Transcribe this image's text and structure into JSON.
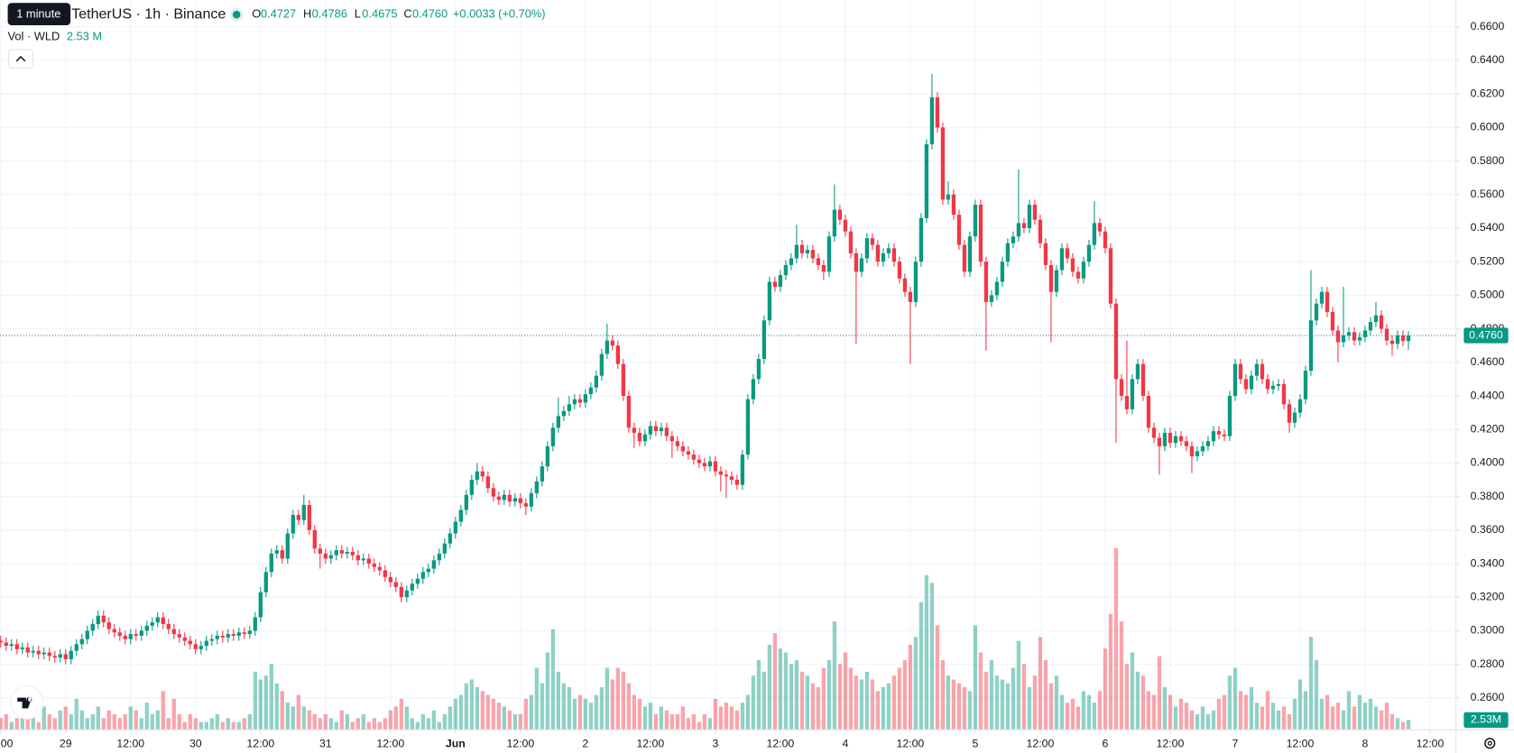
{
  "chart_data": {
    "type": "candlestick",
    "title": "TetherUS · 1h · Binance",
    "tooltip": "1 minute",
    "legend": {
      "o_label": "O",
      "o": "0.4727",
      "h_label": "H",
      "h": "0.4786",
      "l_label": "L",
      "l": "0.4675",
      "c_label": "C",
      "c": "0.4760",
      "change": "+0.0033 (+0.70%)"
    },
    "volume_title": "Vol · WLD",
    "volume_value": "2.53 M",
    "price_line_label": "0.4760",
    "volume_axis_label": "2.53M",
    "up_color": "#089981",
    "down_color": "#f23645",
    "grid": true,
    "xlim": [
      -0.125,
      268.8
    ],
    "ylim": [
      0.241,
      0.676
    ],
    "vlim": [
      0,
      60
    ],
    "xticks": [
      {
        "value": 0,
        "label": "00"
      },
      {
        "value": 12,
        "label": "29"
      },
      {
        "value": 24,
        "label": "12:00"
      },
      {
        "value": 36,
        "label": "30"
      },
      {
        "value": 48,
        "label": "12:00"
      },
      {
        "value": 60,
        "label": "31"
      },
      {
        "value": 72,
        "label": "12:00"
      },
      {
        "value": 84,
        "label": "Jun"
      },
      {
        "value": 96,
        "label": "12:00"
      },
      {
        "value": 108,
        "label": "2"
      },
      {
        "value": 120,
        "label": "12:00"
      },
      {
        "value": 132,
        "label": "3"
      },
      {
        "value": 144,
        "label": "12:00"
      },
      {
        "value": 156,
        "label": "4"
      },
      {
        "value": 168,
        "label": "12:00"
      },
      {
        "value": 180,
        "label": "5"
      },
      {
        "value": 192,
        "label": "12:00"
      },
      {
        "value": 204,
        "label": "6"
      },
      {
        "value": 216,
        "label": "12:00"
      },
      {
        "value": 228,
        "label": "7"
      },
      {
        "value": 240,
        "label": "12:00"
      },
      {
        "value": 252,
        "label": "8"
      },
      {
        "value": 264,
        "label": "12:00"
      }
    ],
    "yticks": [
      {
        "value": 0.26,
        "label": "0.2600"
      },
      {
        "value": 0.28,
        "label": "0.2800"
      },
      {
        "value": 0.3,
        "label": "0.3000"
      },
      {
        "value": 0.32,
        "label": "0.3200"
      },
      {
        "value": 0.34,
        "label": "0.3400"
      },
      {
        "value": 0.36,
        "label": "0.3600"
      },
      {
        "value": 0.38,
        "label": "0.3800"
      },
      {
        "value": 0.4,
        "label": "0.4000"
      },
      {
        "value": 0.42,
        "label": "0.4200"
      },
      {
        "value": 0.44,
        "label": "0.4400"
      },
      {
        "value": 0.46,
        "label": "0.4600"
      },
      {
        "value": 0.48,
        "label": "0.4800"
      },
      {
        "value": 0.5,
        "label": "0.5000"
      },
      {
        "value": 0.52,
        "label": "0.5200"
      },
      {
        "value": 0.54,
        "label": "0.5400"
      },
      {
        "value": 0.56,
        "label": "0.5600"
      },
      {
        "value": 0.58,
        "label": "0.5800"
      },
      {
        "value": 0.6,
        "label": "0.6000"
      },
      {
        "value": 0.62,
        "label": "0.6200"
      },
      {
        "value": 0.64,
        "label": "0.6400"
      },
      {
        "value": 0.66,
        "label": "0.6600"
      }
    ],
    "open": [
      0.294,
      0.293,
      0.291,
      0.292,
      0.289,
      0.29,
      0.287,
      0.288,
      0.286,
      0.287,
      0.285,
      0.284,
      0.286,
      0.283,
      0.288,
      0.292,
      0.295,
      0.3,
      0.304,
      0.309,
      0.305,
      0.301,
      0.299,
      0.297,
      0.295,
      0.298,
      0.297,
      0.3,
      0.303,
      0.305,
      0.308,
      0.304,
      0.301,
      0.298,
      0.296,
      0.294,
      0.292,
      0.289,
      0.291,
      0.294,
      0.295,
      0.297,
      0.296,
      0.298,
      0.297,
      0.299,
      0.298,
      0.3,
      0.308,
      0.323,
      0.335,
      0.346,
      0.348,
      0.343,
      0.358,
      0.369,
      0.366,
      0.375,
      0.36,
      0.349,
      0.346,
      0.343,
      0.345,
      0.348,
      0.346,
      0.347,
      0.345,
      0.342,
      0.343,
      0.34,
      0.338,
      0.336,
      0.332,
      0.329,
      0.326,
      0.32,
      0.324,
      0.328,
      0.331,
      0.335,
      0.337,
      0.342,
      0.346,
      0.352,
      0.358,
      0.365,
      0.372,
      0.381,
      0.39,
      0.395,
      0.392,
      0.385,
      0.38,
      0.378,
      0.381,
      0.377,
      0.379,
      0.376,
      0.374,
      0.382,
      0.389,
      0.398,
      0.41,
      0.421,
      0.428,
      0.431,
      0.435,
      0.438,
      0.436,
      0.441,
      0.445,
      0.452,
      0.465,
      0.473,
      0.47,
      0.459,
      0.44,
      0.421,
      0.418,
      0.413,
      0.417,
      0.422,
      0.419,
      0.421,
      0.416,
      0.413,
      0.41,
      0.407,
      0.405,
      0.402,
      0.4,
      0.398,
      0.401,
      0.395,
      0.393,
      0.392,
      0.39,
      0.387,
      0.405,
      0.438,
      0.45,
      0.462,
      0.485,
      0.508,
      0.505,
      0.512,
      0.518,
      0.522,
      0.53,
      0.525,
      0.527,
      0.522,
      0.518,
      0.514,
      0.535,
      0.551,
      0.545,
      0.538,
      0.525,
      0.514,
      0.522,
      0.534,
      0.53,
      0.52,
      0.525,
      0.528,
      0.52,
      0.51,
      0.502,
      0.496,
      0.52,
      0.546,
      0.59,
      0.618,
      0.6,
      0.557,
      0.56,
      0.548,
      0.53,
      0.514,
      0.535,
      0.554,
      0.52,
      0.496,
      0.5,
      0.508,
      0.52,
      0.531,
      0.535,
      0.543,
      0.54,
      0.554,
      0.545,
      0.531,
      0.518,
      0.502,
      0.515,
      0.528,
      0.522,
      0.514,
      0.51,
      0.52,
      0.53,
      0.543,
      0.538,
      0.528,
      0.495,
      0.45,
      0.44,
      0.432,
      0.45,
      0.459,
      0.44,
      0.421,
      0.415,
      0.41,
      0.418,
      0.412,
      0.416,
      0.413,
      0.41,
      0.404,
      0.407,
      0.41,
      0.413,
      0.419,
      0.417,
      0.416,
      0.44,
      0.459,
      0.45,
      0.444,
      0.452,
      0.459,
      0.45,
      0.444,
      0.446,
      0.447,
      0.435,
      0.424,
      0.43,
      0.438,
      0.455,
      0.485,
      0.495,
      0.502,
      0.49,
      0.479,
      0.472,
      0.476,
      0.478,
      0.473,
      0.475,
      0.479,
      0.484,
      0.488,
      0.48,
      0.473,
      0.471,
      0.476,
      0.4727
    ],
    "high": [
      0.297,
      0.296,
      0.295,
      0.295,
      0.293,
      0.293,
      0.291,
      0.291,
      0.29,
      0.29,
      0.288,
      0.289,
      0.289,
      0.291,
      0.295,
      0.298,
      0.303,
      0.307,
      0.312,
      0.312,
      0.308,
      0.304,
      0.302,
      0.3,
      0.301,
      0.301,
      0.303,
      0.306,
      0.308,
      0.311,
      0.311,
      0.307,
      0.304,
      0.301,
      0.299,
      0.297,
      0.295,
      0.294,
      0.297,
      0.298,
      0.3,
      0.3,
      0.301,
      0.301,
      0.302,
      0.302,
      0.303,
      0.311,
      0.326,
      0.338,
      0.349,
      0.351,
      0.351,
      0.361,
      0.372,
      0.372,
      0.381,
      0.378,
      0.363,
      0.352,
      0.349,
      0.348,
      0.351,
      0.351,
      0.35,
      0.35,
      0.348,
      0.346,
      0.346,
      0.343,
      0.341,
      0.339,
      0.335,
      0.332,
      0.329,
      0.327,
      0.331,
      0.334,
      0.338,
      0.34,
      0.345,
      0.349,
      0.355,
      0.361,
      0.368,
      0.375,
      0.384,
      0.393,
      0.4,
      0.398,
      0.395,
      0.388,
      0.383,
      0.384,
      0.384,
      0.382,
      0.382,
      0.379,
      0.385,
      0.392,
      0.401,
      0.413,
      0.424,
      0.439,
      0.434,
      0.44,
      0.441,
      0.441,
      0.444,
      0.448,
      0.455,
      0.468,
      0.483,
      0.476,
      0.473,
      0.462,
      0.443,
      0.424,
      0.421,
      0.42,
      0.425,
      0.425,
      0.424,
      0.424,
      0.419,
      0.416,
      0.413,
      0.41,
      0.408,
      0.405,
      0.403,
      0.404,
      0.404,
      0.398,
      0.396,
      0.395,
      0.393,
      0.408,
      0.441,
      0.453,
      0.465,
      0.488,
      0.511,
      0.511,
      0.515,
      0.521,
      0.525,
      0.542,
      0.533,
      0.53,
      0.53,
      0.525,
      0.521,
      0.538,
      0.566,
      0.554,
      0.548,
      0.541,
      0.528,
      0.525,
      0.537,
      0.537,
      0.533,
      0.528,
      0.531,
      0.531,
      0.523,
      0.513,
      0.505,
      0.523,
      0.549,
      0.593,
      0.632,
      0.621,
      0.603,
      0.568,
      0.563,
      0.551,
      0.533,
      0.538,
      0.557,
      0.557,
      0.523,
      0.503,
      0.511,
      0.523,
      0.534,
      0.538,
      0.575,
      0.546,
      0.557,
      0.557,
      0.548,
      0.534,
      0.521,
      0.518,
      0.531,
      0.531,
      0.525,
      0.517,
      0.523,
      0.533,
      0.556,
      0.546,
      0.541,
      0.531,
      0.498,
      0.453,
      0.473,
      0.453,
      0.462,
      0.462,
      0.443,
      0.424,
      0.418,
      0.421,
      0.421,
      0.419,
      0.419,
      0.416,
      0.413,
      0.41,
      0.413,
      0.416,
      0.422,
      0.422,
      0.42,
      0.443,
      0.462,
      0.462,
      0.453,
      0.455,
      0.462,
      0.462,
      0.453,
      0.449,
      0.45,
      0.45,
      0.438,
      0.433,
      0.441,
      0.458,
      0.515,
      0.498,
      0.505,
      0.505,
      0.493,
      0.482,
      0.505,
      0.481,
      0.481,
      0.478,
      0.482,
      0.487,
      0.496,
      0.491,
      0.483,
      0.476,
      0.479,
      0.479,
      0.4786
    ],
    "low": [
      0.29,
      0.288,
      0.288,
      0.286,
      0.286,
      0.284,
      0.284,
      0.283,
      0.283,
      0.282,
      0.281,
      0.281,
      0.28,
      0.28,
      0.285,
      0.289,
      0.292,
      0.297,
      0.301,
      0.302,
      0.298,
      0.296,
      0.294,
      0.292,
      0.292,
      0.294,
      0.294,
      0.297,
      0.3,
      0.302,
      0.301,
      0.298,
      0.295,
      0.293,
      0.291,
      0.289,
      0.286,
      0.286,
      0.288,
      0.291,
      0.292,
      0.293,
      0.293,
      0.294,
      0.294,
      0.295,
      0.295,
      0.297,
      0.305,
      0.32,
      0.332,
      0.343,
      0.34,
      0.34,
      0.355,
      0.363,
      0.363,
      0.357,
      0.346,
      0.337,
      0.34,
      0.34,
      0.342,
      0.343,
      0.343,
      0.342,
      0.339,
      0.339,
      0.337,
      0.335,
      0.333,
      0.329,
      0.326,
      0.323,
      0.317,
      0.317,
      0.321,
      0.325,
      0.328,
      0.332,
      0.334,
      0.339,
      0.343,
      0.349,
      0.355,
      0.362,
      0.369,
      0.378,
      0.387,
      0.389,
      0.382,
      0.377,
      0.375,
      0.375,
      0.374,
      0.374,
      0.373,
      0.369,
      0.371,
      0.379,
      0.386,
      0.395,
      0.407,
      0.418,
      0.425,
      0.428,
      0.432,
      0.433,
      0.433,
      0.438,
      0.442,
      0.449,
      0.462,
      0.467,
      0.456,
      0.437,
      0.418,
      0.409,
      0.41,
      0.41,
      0.414,
      0.416,
      0.416,
      0.413,
      0.403,
      0.407,
      0.404,
      0.402,
      0.399,
      0.397,
      0.395,
      0.395,
      0.392,
      0.383,
      0.379,
      0.387,
      0.384,
      0.384,
      0.402,
      0.435,
      0.447,
      0.459,
      0.482,
      0.502,
      0.502,
      0.509,
      0.515,
      0.519,
      0.522,
      0.522,
      0.519,
      0.515,
      0.509,
      0.511,
      0.532,
      0.542,
      0.535,
      0.522,
      0.471,
      0.511,
      0.519,
      0.527,
      0.517,
      0.517,
      0.522,
      0.517,
      0.507,
      0.499,
      0.459,
      0.493,
      0.517,
      0.543,
      0.587,
      0.597,
      0.554,
      0.554,
      0.545,
      0.527,
      0.511,
      0.511,
      0.532,
      0.517,
      0.467,
      0.493,
      0.497,
      0.505,
      0.517,
      0.528,
      0.532,
      0.537,
      0.537,
      0.542,
      0.528,
      0.515,
      0.472,
      0.499,
      0.512,
      0.519,
      0.511,
      0.507,
      0.507,
      0.517,
      0.527,
      0.535,
      0.525,
      0.492,
      0.412,
      0.437,
      0.429,
      0.429,
      0.447,
      0.437,
      0.418,
      0.412,
      0.393,
      0.407,
      0.409,
      0.409,
      0.41,
      0.407,
      0.394,
      0.401,
      0.404,
      0.407,
      0.41,
      0.414,
      0.413,
      0.413,
      0.437,
      0.447,
      0.441,
      0.441,
      0.449,
      0.447,
      0.441,
      0.441,
      0.443,
      0.432,
      0.418,
      0.421,
      0.427,
      0.435,
      0.452,
      0.482,
      0.492,
      0.487,
      0.476,
      0.46,
      0.469,
      0.473,
      0.47,
      0.47,
      0.472,
      0.476,
      0.481,
      0.477,
      0.47,
      0.464,
      0.468,
      0.4695,
      0.4675
    ],
    "close": [
      0.293,
      0.291,
      0.292,
      0.289,
      0.29,
      0.287,
      0.288,
      0.286,
      0.287,
      0.285,
      0.284,
      0.286,
      0.283,
      0.288,
      0.292,
      0.295,
      0.3,
      0.304,
      0.309,
      0.305,
      0.301,
      0.299,
      0.297,
      0.295,
      0.298,
      0.297,
      0.3,
      0.303,
      0.305,
      0.308,
      0.304,
      0.301,
      0.298,
      0.296,
      0.294,
      0.292,
      0.289,
      0.291,
      0.294,
      0.295,
      0.297,
      0.296,
      0.298,
      0.297,
      0.299,
      0.298,
      0.3,
      0.308,
      0.323,
      0.335,
      0.346,
      0.348,
      0.343,
      0.358,
      0.369,
      0.366,
      0.375,
      0.36,
      0.349,
      0.346,
      0.343,
      0.345,
      0.348,
      0.346,
      0.347,
      0.345,
      0.342,
      0.343,
      0.34,
      0.338,
      0.336,
      0.332,
      0.329,
      0.326,
      0.32,
      0.324,
      0.328,
      0.331,
      0.335,
      0.337,
      0.342,
      0.346,
      0.352,
      0.358,
      0.365,
      0.372,
      0.381,
      0.39,
      0.395,
      0.392,
      0.385,
      0.38,
      0.378,
      0.381,
      0.377,
      0.379,
      0.376,
      0.374,
      0.382,
      0.389,
      0.398,
      0.41,
      0.421,
      0.428,
      0.431,
      0.435,
      0.438,
      0.436,
      0.441,
      0.445,
      0.452,
      0.465,
      0.473,
      0.47,
      0.459,
      0.44,
      0.421,
      0.418,
      0.413,
      0.417,
      0.422,
      0.419,
      0.421,
      0.416,
      0.413,
      0.41,
      0.407,
      0.405,
      0.402,
      0.4,
      0.398,
      0.401,
      0.395,
      0.393,
      0.392,
      0.39,
      0.387,
      0.405,
      0.438,
      0.45,
      0.462,
      0.485,
      0.508,
      0.505,
      0.512,
      0.518,
      0.522,
      0.53,
      0.525,
      0.527,
      0.522,
      0.518,
      0.514,
      0.535,
      0.551,
      0.545,
      0.538,
      0.525,
      0.514,
      0.522,
      0.534,
      0.53,
      0.52,
      0.525,
      0.528,
      0.52,
      0.51,
      0.502,
      0.496,
      0.52,
      0.546,
      0.59,
      0.618,
      0.6,
      0.557,
      0.56,
      0.548,
      0.53,
      0.514,
      0.535,
      0.554,
      0.52,
      0.496,
      0.5,
      0.508,
      0.52,
      0.531,
      0.535,
      0.543,
      0.54,
      0.554,
      0.545,
      0.531,
      0.518,
      0.502,
      0.515,
      0.528,
      0.522,
      0.514,
      0.51,
      0.52,
      0.53,
      0.543,
      0.538,
      0.528,
      0.495,
      0.45,
      0.44,
      0.432,
      0.45,
      0.459,
      0.44,
      0.421,
      0.415,
      0.41,
      0.418,
      0.412,
      0.416,
      0.413,
      0.41,
      0.404,
      0.407,
      0.41,
      0.413,
      0.419,
      0.417,
      0.416,
      0.44,
      0.459,
      0.45,
      0.444,
      0.452,
      0.459,
      0.45,
      0.444,
      0.446,
      0.447,
      0.435,
      0.424,
      0.43,
      0.438,
      0.455,
      0.485,
      0.495,
      0.502,
      0.49,
      0.479,
      0.472,
      0.476,
      0.478,
      0.473,
      0.475,
      0.479,
      0.484,
      0.488,
      0.48,
      0.473,
      0.471,
      0.476,
      0.4727,
      0.476
    ],
    "volume": [
      3,
      4,
      2,
      3,
      5,
      3,
      4,
      2,
      6,
      4,
      3,
      5,
      6,
      4,
      8,
      5,
      3,
      4,
      6,
      3,
      5,
      4,
      3,
      4,
      6,
      5,
      3,
      7,
      4,
      5,
      10,
      3,
      8,
      4,
      2,
      4,
      3,
      2,
      2,
      3,
      4,
      2,
      3,
      2,
      2,
      3,
      4,
      15,
      13,
      14,
      17,
      12,
      10,
      7,
      6,
      9,
      6,
      5,
      4,
      3,
      4,
      3,
      2,
      5,
      4,
      2,
      3,
      4,
      2,
      3,
      2,
      3,
      5,
      6,
      8,
      6,
      3,
      2,
      4,
      3,
      5,
      2,
      4,
      6,
      8,
      9,
      12,
      13,
      11,
      10,
      9,
      8,
      7,
      6,
      5,
      4,
      4,
      8,
      9,
      16,
      12,
      20,
      26,
      15,
      12,
      11,
      8,
      9,
      8,
      7,
      9,
      11,
      16,
      13,
      16,
      15,
      12,
      9,
      8,
      6,
      7,
      4,
      6,
      5,
      4,
      4,
      6,
      3,
      4,
      2,
      4,
      3,
      8,
      6,
      7,
      6,
      5,
      7,
      9,
      14,
      18,
      15,
      22,
      25,
      21,
      20,
      17,
      18,
      15,
      14,
      12,
      11,
      16,
      18,
      28,
      17,
      20,
      16,
      14,
      13,
      15,
      13,
      10,
      11,
      12,
      14,
      16,
      18,
      22,
      24,
      33,
      40,
      38,
      27,
      18,
      14,
      13,
      12,
      11,
      10,
      27,
      20,
      15,
      18,
      14,
      13,
      12,
      16,
      23,
      17,
      11,
      14,
      24,
      18,
      12,
      14,
      9,
      7,
      8,
      6,
      10,
      9,
      7,
      10,
      21,
      30,
      47,
      28,
      17,
      20,
      15,
      14,
      10,
      9,
      19,
      11,
      9,
      6,
      8,
      7,
      5,
      4,
      6,
      4,
      5,
      8,
      9,
      14,
      16,
      10,
      9,
      11,
      7,
      6,
      10,
      7,
      5,
      6,
      4,
      8,
      13,
      10,
      24,
      18,
      8,
      9,
      6,
      7,
      5,
      10,
      6,
      9,
      7,
      8,
      6,
      5,
      7,
      4,
      3,
      2,
      2.53
    ]
  }
}
